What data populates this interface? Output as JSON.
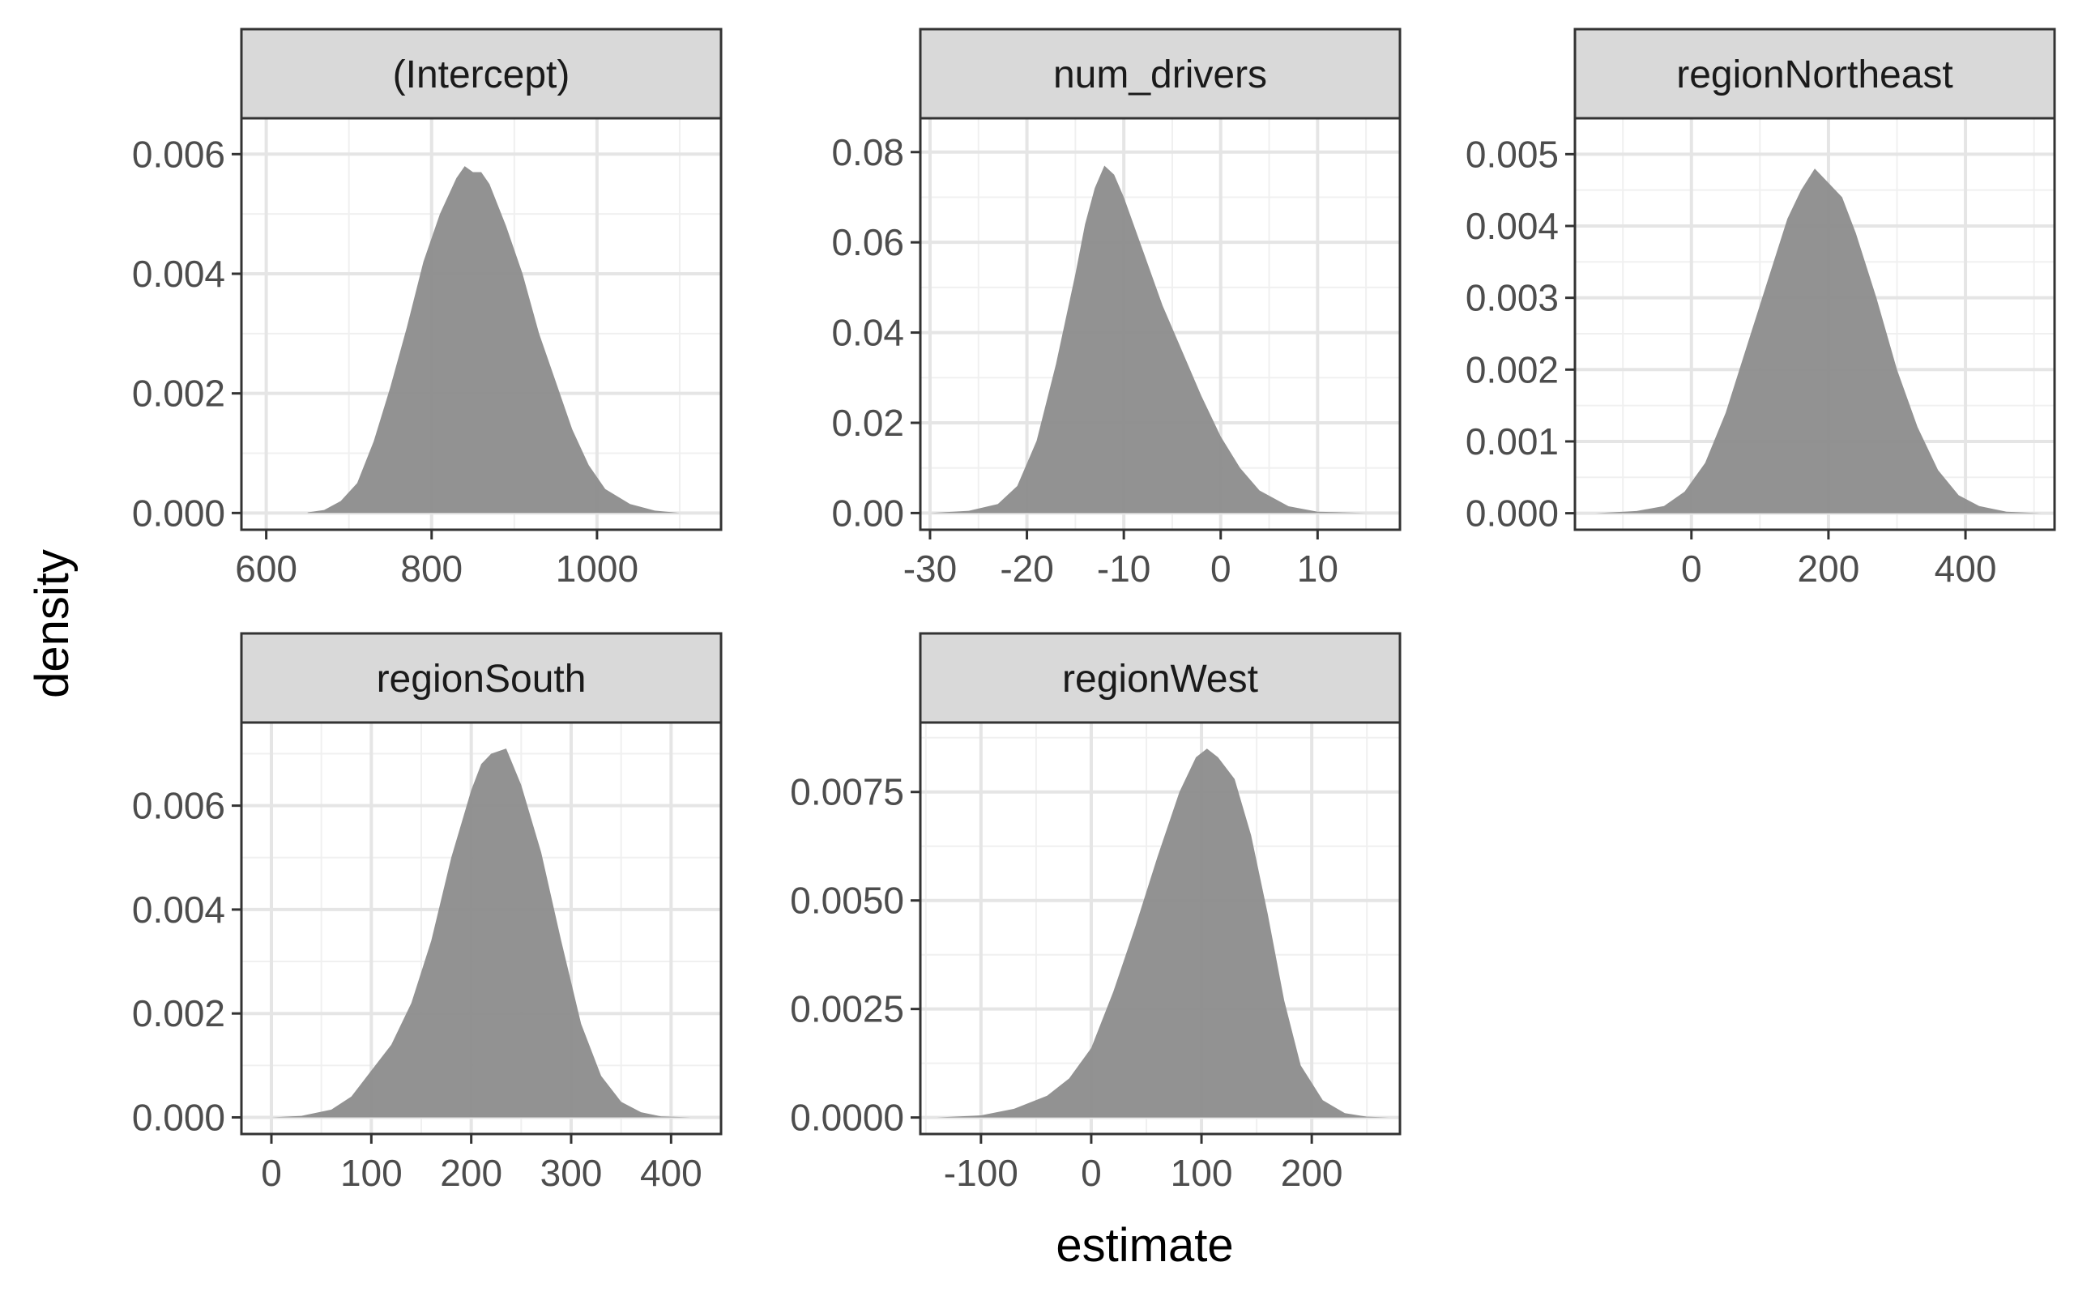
{
  "chart_data": {
    "type": "area",
    "title": "",
    "xlabel": "estimate",
    "ylabel": "density",
    "grid": true,
    "colors": {
      "fill": "#8c8c8c",
      "strip": "#d9d9d9",
      "grid_major": "#e5e5e5",
      "grid_minor": "#f0f0f0"
    },
    "panels": [
      {
        "name": "(Intercept)",
        "xlim": [
          570,
          1150
        ],
        "ylim": [
          -0.00028,
          0.0066
        ],
        "xticks": [
          600,
          800,
          1000
        ],
        "xtick_labels": [
          "600",
          "800",
          "1000"
        ],
        "yticks": [
          0,
          0.002,
          0.004,
          0.006
        ],
        "ytick_labels": [
          "0.000",
          "0.002",
          "0.004",
          "0.006"
        ],
        "x": [
          650,
          670,
          690,
          710,
          730,
          750,
          770,
          790,
          810,
          830,
          840,
          850,
          860,
          870,
          890,
          910,
          930,
          950,
          970,
          990,
          1010,
          1040,
          1070,
          1100
        ],
        "y": [
          1e-05,
          5e-05,
          0.0002,
          0.0005,
          0.0012,
          0.0021,
          0.0031,
          0.0042,
          0.005,
          0.0056,
          0.0058,
          0.0057,
          0.0057,
          0.0055,
          0.0048,
          0.004,
          0.003,
          0.0022,
          0.0014,
          0.0008,
          0.0004,
          0.00015,
          4e-05,
          0.0
        ]
      },
      {
        "name": "num_drivers",
        "xlim": [
          -31,
          18.5
        ],
        "ylim": [
          -0.0037,
          0.0875
        ],
        "xticks": [
          -30,
          -20,
          -10,
          0,
          10
        ],
        "xtick_labels": [
          "-30",
          "-20",
          "-10",
          "0",
          "10"
        ],
        "yticks": [
          0,
          0.02,
          0.04,
          0.06,
          0.08
        ],
        "ytick_labels": [
          "0.00",
          "0.02",
          "0.04",
          "0.06",
          "0.08"
        ],
        "x": [
          -30,
          -26,
          -23,
          -21,
          -19,
          -17,
          -15,
          -14,
          -13,
          -12,
          -11,
          -10,
          -8,
          -6,
          -4,
          -2,
          0,
          2,
          4,
          7,
          10,
          15
        ],
        "y": [
          0.0,
          0.0005,
          0.002,
          0.006,
          0.016,
          0.033,
          0.053,
          0.064,
          0.072,
          0.077,
          0.075,
          0.07,
          0.058,
          0.046,
          0.036,
          0.026,
          0.017,
          0.01,
          0.005,
          0.0015,
          0.0003,
          0.0
        ]
      },
      {
        "name": "regionNortheast",
        "xlim": [
          -170,
          530
        ],
        "ylim": [
          -0.00023,
          0.0055
        ],
        "xticks": [
          0,
          200,
          400
        ],
        "xtick_labels": [
          "0",
          "200",
          "400"
        ],
        "yticks": [
          0,
          0.001,
          0.002,
          0.003,
          0.004,
          0.005
        ],
        "ytick_labels": [
          "0.000",
          "0.001",
          "0.002",
          "0.003",
          "0.004",
          "0.005"
        ],
        "x": [
          -140,
          -80,
          -40,
          -10,
          20,
          50,
          80,
          110,
          140,
          160,
          180,
          200,
          220,
          240,
          270,
          300,
          330,
          360,
          390,
          420,
          460,
          510
        ],
        "y": [
          0.0,
          3e-05,
          0.0001,
          0.0003,
          0.0007,
          0.0014,
          0.0023,
          0.0032,
          0.0041,
          0.0045,
          0.0048,
          0.0046,
          0.0044,
          0.0039,
          0.003,
          0.002,
          0.0012,
          0.0006,
          0.00025,
          0.0001,
          2e-05,
          0.0
        ]
      },
      {
        "name": "regionSouth",
        "xlim": [
          -30,
          450
        ],
        "ylim": [
          -0.00032,
          0.0076
        ],
        "xticks": [
          0,
          100,
          200,
          300,
          400
        ],
        "xtick_labels": [
          "0",
          "100",
          "200",
          "300",
          "400"
        ],
        "yticks": [
          0,
          0.002,
          0.004,
          0.006
        ],
        "ytick_labels": [
          "0.000",
          "0.002",
          "0.004",
          "0.006"
        ],
        "x": [
          0,
          30,
          60,
          80,
          100,
          120,
          140,
          160,
          180,
          200,
          210,
          220,
          235,
          250,
          270,
          290,
          310,
          330,
          350,
          370,
          390,
          420
        ],
        "y": [
          0.0,
          3e-05,
          0.00015,
          0.0004,
          0.0009,
          0.0014,
          0.0022,
          0.0034,
          0.005,
          0.0063,
          0.0068,
          0.007,
          0.0071,
          0.0064,
          0.0051,
          0.0034,
          0.0018,
          0.0008,
          0.0003,
          0.0001,
          2e-05,
          0.0
        ]
      },
      {
        "name": "regionWest",
        "xlim": [
          -155,
          280
        ],
        "ylim": [
          -0.00038,
          0.0091
        ],
        "xticks": [
          -100,
          0,
          100,
          200
        ],
        "xtick_labels": [
          "-100",
          "0",
          "100",
          "200"
        ],
        "yticks": [
          0,
          0.0025,
          0.005,
          0.0075
        ],
        "ytick_labels": [
          "0.0000",
          "0.0025",
          "0.0050",
          "0.0075"
        ],
        "x": [
          -140,
          -100,
          -70,
          -40,
          -20,
          0,
          20,
          40,
          60,
          80,
          95,
          105,
          115,
          130,
          145,
          160,
          175,
          190,
          210,
          230,
          250,
          270
        ],
        "y": [
          0.0,
          5e-05,
          0.0002,
          0.0005,
          0.0009,
          0.0016,
          0.0029,
          0.0044,
          0.006,
          0.0075,
          0.0083,
          0.0085,
          0.0083,
          0.0078,
          0.0065,
          0.0047,
          0.0027,
          0.0012,
          0.0004,
          0.0001,
          2e-05,
          0.0
        ]
      }
    ]
  }
}
